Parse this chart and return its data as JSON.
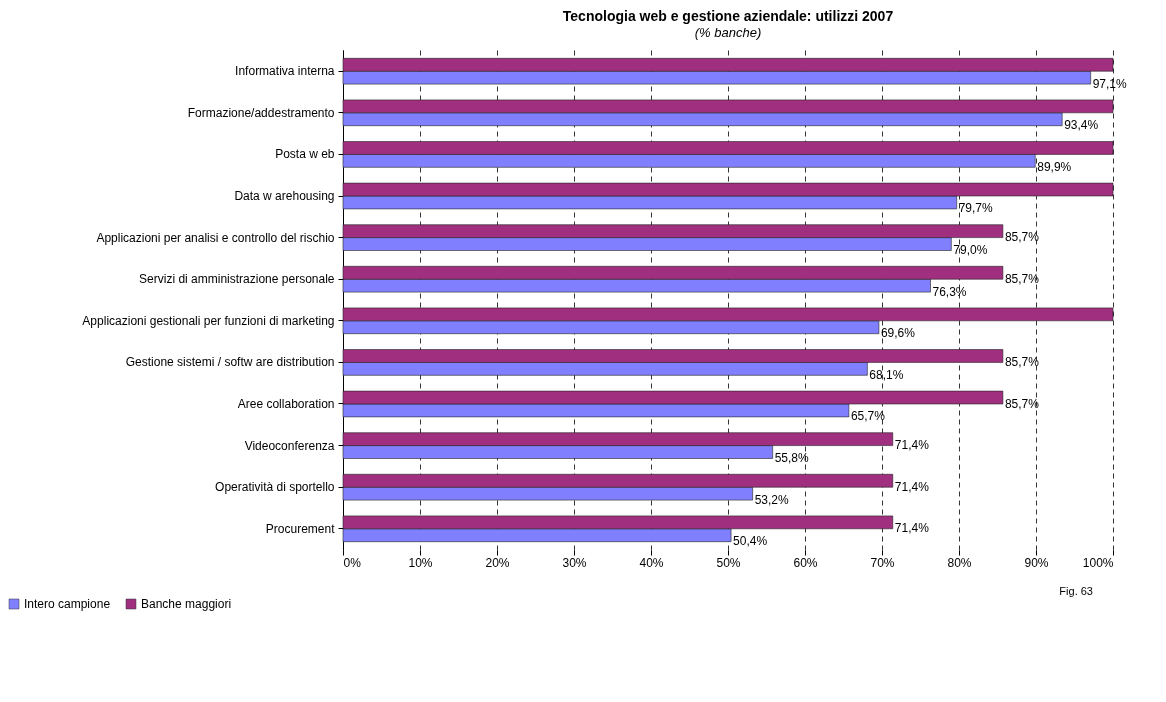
{
  "chart_data": {
    "type": "bar",
    "orientation": "horizontal",
    "title": "Tecnologia web e gestione aziendale: utilizzi 2007",
    "subtitle": "(% banche)",
    "categories": [
      "Informativa interna",
      "Formazione/addestramento",
      "Posta w eb",
      "Data w arehousing",
      "Applicazioni per analisi e controllo del rischio",
      "Servizi di amministrazione personale",
      "Applicazioni gestionali per funzioni di marketing",
      "Gestione sistemi / softw are distribution",
      "Aree collaboration",
      "Videoconferenza",
      "Operatività di sportello",
      "Procurement"
    ],
    "series": [
      {
        "name": "Intero campione",
        "color": "#8080ff",
        "values": [
          97.1,
          93.4,
          89.9,
          79.7,
          79.0,
          76.3,
          69.6,
          68.1,
          65.7,
          55.8,
          53.2,
          50.4
        ],
        "value_labels": [
          "97,1%",
          "93,4%",
          "89,9%",
          "79,7%",
          "79,0%",
          "76,3%",
          "69,6%",
          "68,1%",
          "65,7%",
          "55,8%",
          "53,2%",
          "50,4%"
        ]
      },
      {
        "name": "Banche maggiori",
        "color": "#a0307f",
        "values": [
          100,
          100,
          100,
          100,
          85.7,
          85.7,
          100,
          85.7,
          85.7,
          71.4,
          71.4,
          71.4
        ],
        "value_labels": [
          null,
          null,
          null,
          null,
          "85,7%",
          "85,7%",
          null,
          "85,7%",
          "85,7%",
          "71,4%",
          "71,4%",
          "71,4%"
        ]
      }
    ],
    "xlim": [
      0,
      100
    ],
    "xticks": [
      {
        "value": 0,
        "label": "0%"
      },
      {
        "value": 10,
        "label": "10%"
      },
      {
        "value": 20,
        "label": "20%"
      },
      {
        "value": 30,
        "label": "30%"
      },
      {
        "value": 40,
        "label": "40%"
      },
      {
        "value": 50,
        "label": "50%"
      },
      {
        "value": 60,
        "label": "60%"
      },
      {
        "value": 70,
        "label": "70%"
      },
      {
        "value": 80,
        "label": "80%"
      },
      {
        "value": 90,
        "label": "90%"
      },
      {
        "value": 100,
        "label": "100%"
      }
    ],
    "grid": "x",
    "legend": "bottom left",
    "annotations": [
      "Fig. 63"
    ]
  }
}
